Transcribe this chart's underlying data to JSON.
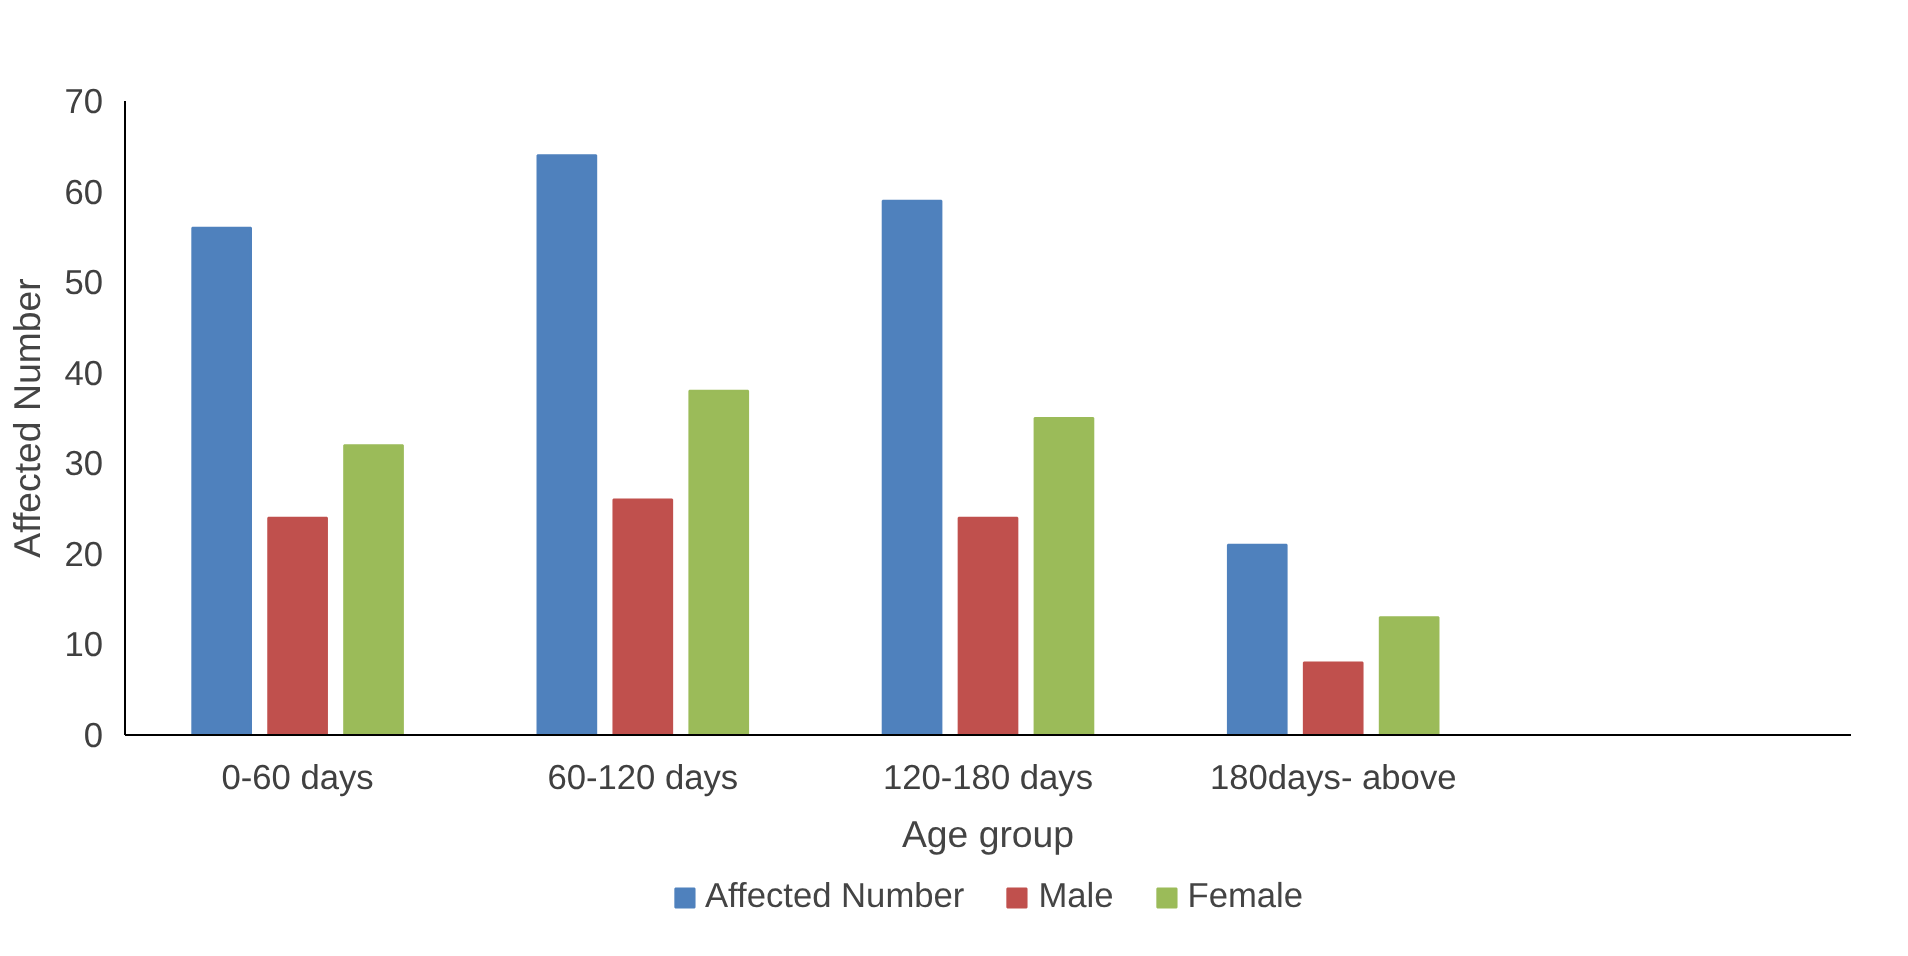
{
  "chart_data": {
    "type": "bar",
    "xlabel": "Age group",
    "ylabel": "Affected Number",
    "categories": [
      "0-60 days",
      "60-120 days",
      "120-180 days",
      "180days- above",
      null
    ],
    "series": [
      {
        "name": "Affected Number",
        "color": "#4f81bd",
        "values": [
          56,
          64,
          59,
          21,
          null
        ]
      },
      {
        "name": "Male",
        "color": "#c0504d",
        "values": [
          24,
          26,
          24,
          8,
          null
        ]
      },
      {
        "name": "Female",
        "color": "#9bbb59",
        "values": [
          32,
          38,
          35,
          13,
          null
        ]
      }
    ],
    "ylim": [
      0,
      70
    ],
    "yticks": [
      0,
      10,
      20,
      30,
      40,
      50,
      60,
      70
    ],
    "grid": false,
    "legend": "bottom"
  }
}
